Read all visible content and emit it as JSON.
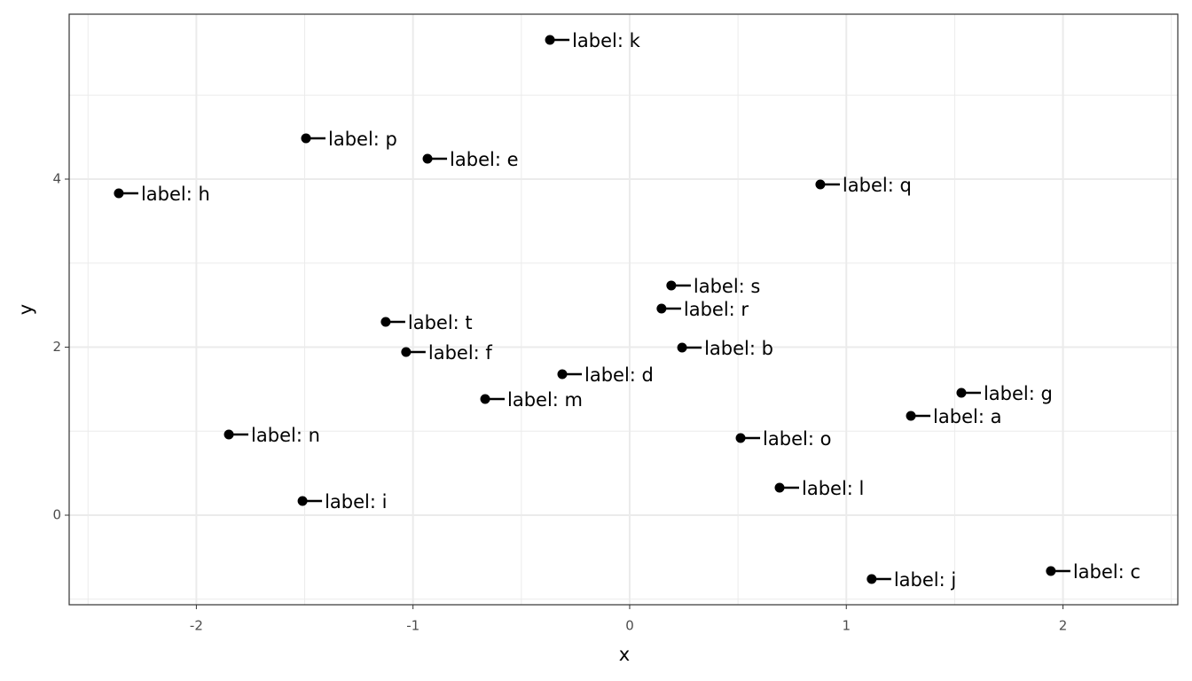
{
  "chart_data": {
    "type": "scatter",
    "x_label": "x",
    "y_label": "y",
    "labels": [
      "label: k",
      "label: p",
      "label: e",
      "label: h",
      "label: q",
      "label: s",
      "label: r",
      "label: t",
      "label: f",
      "label: b",
      "label: d",
      "label: m",
      "label: g",
      "label: a",
      "label: o",
      "label: n",
      "label: l",
      "label: i",
      "label: j",
      "label: c"
    ],
    "x": [
      -0.368,
      -1.494,
      -0.933,
      -2.358,
      0.88,
      0.192,
      0.147,
      -1.126,
      -1.032,
      0.242,
      -0.311,
      -0.667,
      1.531,
      1.298,
      0.512,
      -1.85,
      0.692,
      -1.51,
      1.117,
      1.944
    ],
    "y": [
      5.657,
      4.486,
      4.243,
      3.831,
      3.937,
      2.734,
      2.459,
      2.301,
      1.942,
      1.995,
      1.678,
      1.383,
      1.456,
      1.182,
      0.918,
      0.96,
      0.327,
      0.169,
      -0.76,
      -0.665
    ],
    "color": "#000000",
    "xlim": [
      -2.587,
      2.53
    ],
    "ylim": [
      -1.066,
      5.963
    ],
    "xticks": [
      -2,
      -1,
      0,
      1,
      2
    ],
    "yticks": [
      0,
      2,
      4
    ],
    "grid": true
  }
}
